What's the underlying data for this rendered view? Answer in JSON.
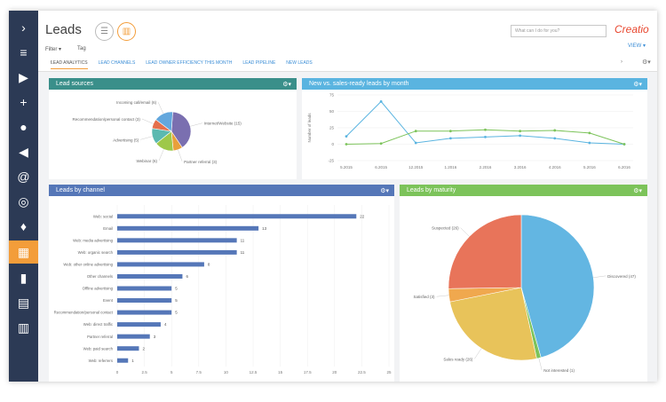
{
  "header": {
    "title": "Leads",
    "search_placeholder": "What can I do for you?",
    "logo": "Creatio",
    "view": "VIEW ▾"
  },
  "toolbar": {
    "filter": "Filter ▾",
    "tag": "Tag"
  },
  "tabs": [
    "LEAD ANALYTICS",
    "LEAD CHANNELS",
    "LEAD OWNER EFFICIENCY THIS MONTH",
    "LEAD PIPELINE",
    "NEW LEADS"
  ],
  "sidebar": {
    "icons": [
      "chevron-right-icon",
      "menu-icon",
      "play-icon",
      "plus-icon",
      "person-icon",
      "megaphone-icon",
      "at-icon",
      "target-icon",
      "lightbulb-icon",
      "leads-icon",
      "building-icon",
      "calendar-icon",
      "bar-chart-icon"
    ]
  },
  "colors": {
    "sidebar": "#2c3a55",
    "accent": "#f39d3a",
    "lead_sources_head": "#3a8f8a",
    "line_head": "#5ab4e0",
    "channel_head": "#5577b8",
    "maturity_head": "#7cc35a"
  },
  "panels": {
    "sources": "Lead sources",
    "line": "New vs. sales-ready leads by month",
    "channel": "Leads by channel",
    "maturity": "Leads by maturity"
  },
  "chart_data": [
    {
      "type": "pie",
      "title": "Lead sources",
      "categories": [
        "Internet/Website",
        "Partner referral",
        "Webinar",
        "Advertising",
        "Recommendation/personal contact",
        "Incoming call/email"
      ],
      "labels": [
        "Internet/Website (15)",
        "Partner referral (3)",
        "Webinar (6)",
        "Advertising (5)",
        "Recommendation/personal contact (3)",
        "Incoming call/email (6)"
      ],
      "values": [
        15,
        3,
        6,
        5,
        3,
        6
      ],
      "colors": [
        "#7a6fb0",
        "#e9a03b",
        "#9ec84a",
        "#5bb9b0",
        "#e56f4b",
        "#63a7dd"
      ]
    },
    {
      "type": "line",
      "title": "New vs. sales-ready leads by month",
      "ylabel": "Number of leads",
      "categories": [
        "5.2015",
        "6.2015",
        "12.2015",
        "1.2016",
        "2.2016",
        "3.2016",
        "4.2016",
        "5.2016",
        "6.2016"
      ],
      "ylim": [
        -25,
        75
      ],
      "yticks": [
        "75",
        "50",
        "25",
        "0",
        "-25"
      ],
      "series": [
        {
          "values": [
            12,
            65,
            2,
            9,
            11,
            13,
            9,
            2,
            0
          ],
          "color": "#5ab4e0"
        },
        {
          "values": [
            0,
            1,
            20,
            20,
            22,
            20,
            21,
            17,
            0
          ],
          "color": "#7cc35a"
        }
      ]
    },
    {
      "type": "bar",
      "title": "Leads by channel",
      "categories": [
        "Web: social",
        "Email",
        "Web: media advertising",
        "Web: organic search",
        "Web: other online advertising",
        "Other channels",
        "Offline advertising",
        "Event",
        "Recommendation/personal contact",
        "Web: direct traffic",
        "Partner referral",
        "Web: paid search",
        "Web: referrers"
      ],
      "values": [
        22,
        13,
        11,
        11,
        8,
        6,
        5,
        5,
        5,
        4,
        3,
        2,
        1
      ],
      "xlim": [
        0,
        25
      ],
      "xticks": [
        "0",
        "2.5",
        "5",
        "7.5",
        "10",
        "12.5",
        "15",
        "17.5",
        "20",
        "22.5",
        "25"
      ]
    },
    {
      "type": "pie",
      "title": "Leads by maturity",
      "categories": [
        "Discovered",
        "Not interested",
        "Sales ready",
        "Satisfied",
        "Suspected"
      ],
      "labels": [
        "Discovered (47)",
        "Not interested (1)",
        "Sales ready (26)",
        "Satisfied (3)",
        "Suspected (26)"
      ],
      "values": [
        47,
        1,
        26,
        3,
        26
      ],
      "colors": [
        "#63b6e2",
        "#7cc35a",
        "#e8c35a",
        "#f0a84e",
        "#e8745a"
      ]
    }
  ]
}
